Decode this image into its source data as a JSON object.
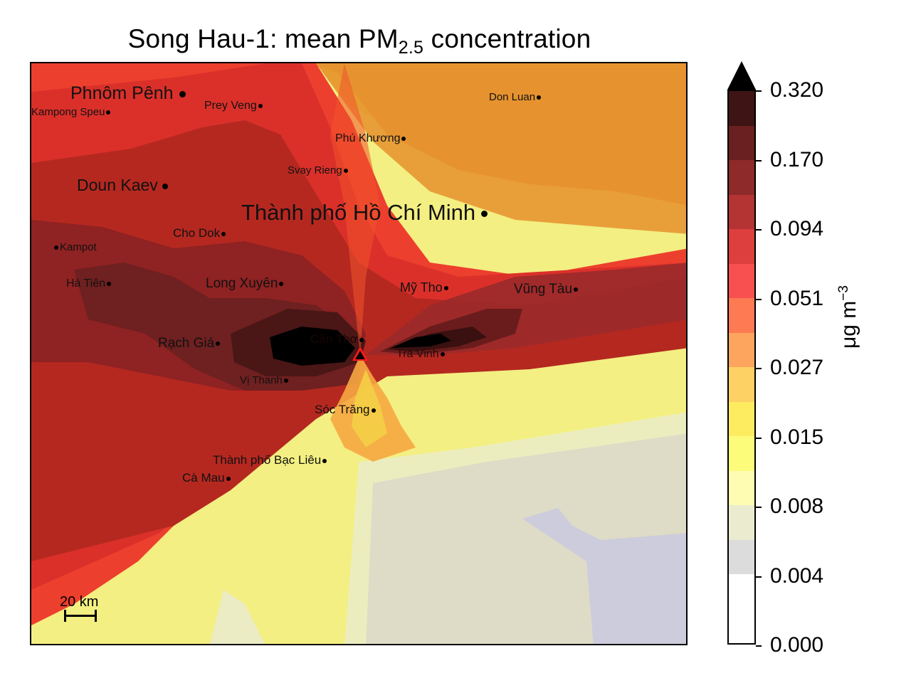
{
  "title": {
    "prefix": "Song Hau-1: mean PM",
    "subscript": "2.5",
    "suffix": " concentration"
  },
  "map": {
    "source_marker": {
      "name": "Song Hau-1",
      "shape": "triangle",
      "color": "#000000",
      "outline": "#ff1a1a"
    },
    "scale_bar": {
      "label": "20 km"
    },
    "cities": [
      {
        "name": "Phnôm Pênh",
        "size": "large"
      },
      {
        "name": "Kampong Speu",
        "size": "small"
      },
      {
        "name": "Prey Veng",
        "size": "small"
      },
      {
        "name": "Don Luan",
        "size": "small"
      },
      {
        "name": "Phú Khương",
        "size": "small"
      },
      {
        "name": "Svay Rieng",
        "size": "small"
      },
      {
        "name": "Doun Kaev",
        "size": "large"
      },
      {
        "name": "Thành phố Hồ Chí Minh",
        "size": "xlarge"
      },
      {
        "name": "Cho Dok",
        "size": "medium"
      },
      {
        "name": "Kampot",
        "size": "small"
      },
      {
        "name": "Hà Tiên",
        "size": "small"
      },
      {
        "name": "Long Xuyên",
        "size": "medium"
      },
      {
        "name": "Mỹ Tho",
        "size": "medium"
      },
      {
        "name": "Vũng Tàu",
        "size": "medium"
      },
      {
        "name": "Rạch Giá",
        "size": "medium"
      },
      {
        "name": "Cần Thơ",
        "size": "medium"
      },
      {
        "name": "Trà Vinh",
        "size": "small"
      },
      {
        "name": "Vị Thanh",
        "size": "small"
      },
      {
        "name": "Sóc Trăng",
        "size": "medium"
      },
      {
        "name": "Thành phố Bạc Liêu",
        "size": "medium"
      },
      {
        "name": "Cà Mau",
        "size": "medium"
      }
    ]
  },
  "colorbar": {
    "label_main": "μg m",
    "label_sup": "−3",
    "extend": "max",
    "tick_labels": [
      "0.320",
      "0.170",
      "0.094",
      "0.051",
      "0.027",
      "0.015",
      "0.008",
      "0.004",
      "0.000"
    ],
    "levels_top_to_bottom": [
      "#3e1414",
      "#6a2020",
      "#8e2a2a",
      "#b43333",
      "#dd3e3e",
      "#f85050",
      "#fd7a52",
      "#fda55e",
      "#fdd164",
      "#fdeb60",
      "#fdfb7a",
      "#fdfcb2",
      "#ebebd0",
      "#dcdcdc",
      "#ffffff"
    ]
  },
  "chart_data": {
    "type": "heatmap",
    "title": "Song Hau-1: mean PM2.5 concentration",
    "subtitle": "",
    "xlabel": "",
    "ylabel": "",
    "colorbar_label": "μg m^-3",
    "colorbar_ticks": [
      0.32,
      0.17,
      0.094,
      0.051,
      0.027,
      0.015,
      0.008,
      0.004,
      0.0
    ],
    "colorbar_extend": "max",
    "n_levels": 16,
    "source": "Song Hau-1 power plant (triangle marker, near Cần Thơ)",
    "max_region": ">0.320 μg m^-3 lobes west (toward Cần Thơ) and east (toward Trà Vinh) of source",
    "min_region": "<0.004 μg m^-3 in southeast (offshore)",
    "scale_bar": "20 km",
    "grid": false,
    "legend": "colorbar right"
  }
}
